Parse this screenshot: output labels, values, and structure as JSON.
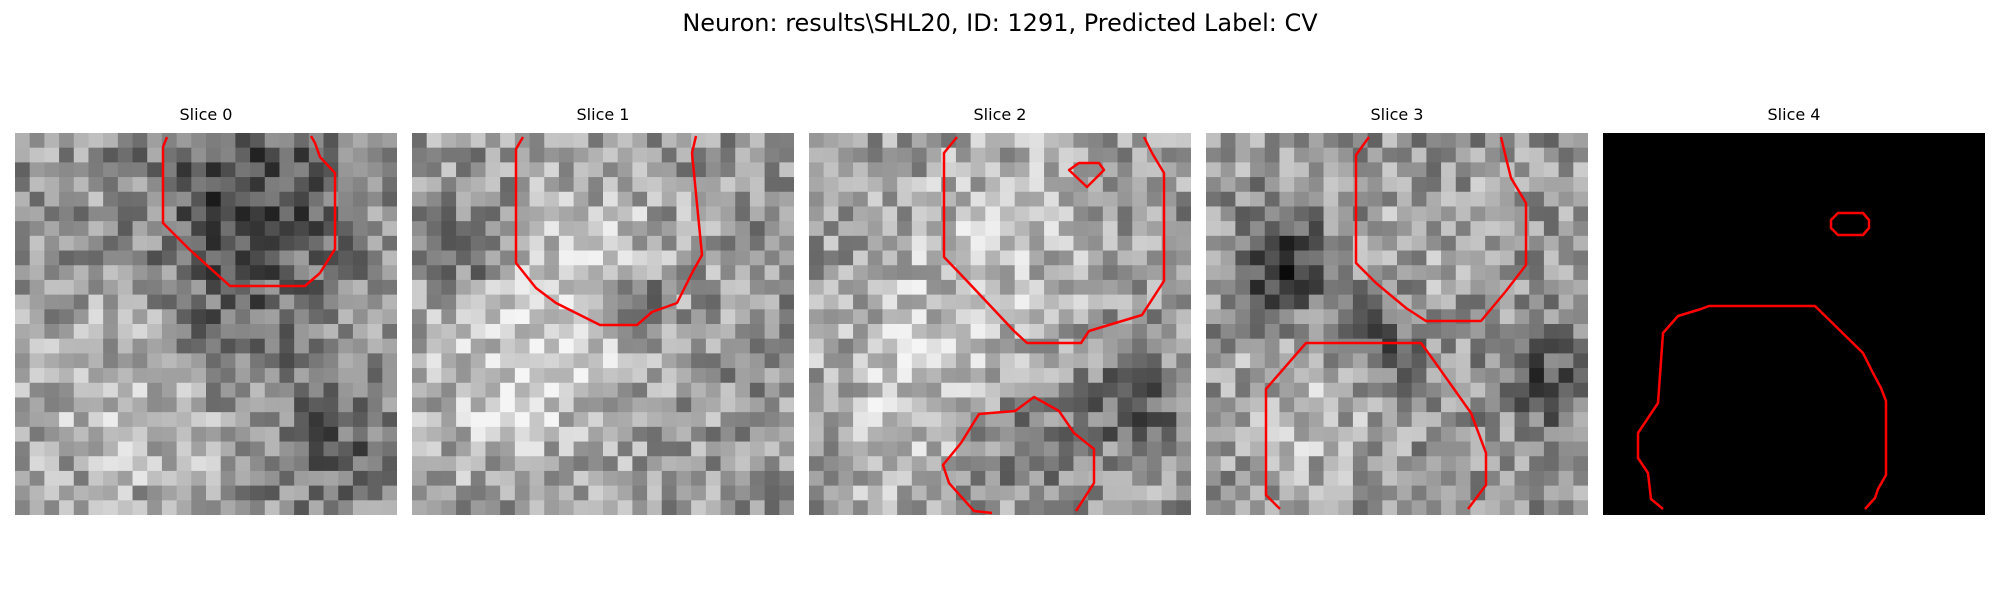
{
  "figure": {
    "title": "Neuron: results\\SHL20, ID: 1291, Predicted Label: CV"
  },
  "panels": [
    {
      "title": "Slice 0",
      "background": "grayscale-noise"
    },
    {
      "title": "Slice 1",
      "background": "grayscale-noise"
    },
    {
      "title": "Slice 2",
      "background": "grayscale-noise"
    },
    {
      "title": "Slice 3",
      "background": "grayscale-noise"
    },
    {
      "title": "Slice 4",
      "background": "#000000"
    }
  ],
  "colors": {
    "contour": "#ff0000",
    "slice4_background": "#000000"
  }
}
